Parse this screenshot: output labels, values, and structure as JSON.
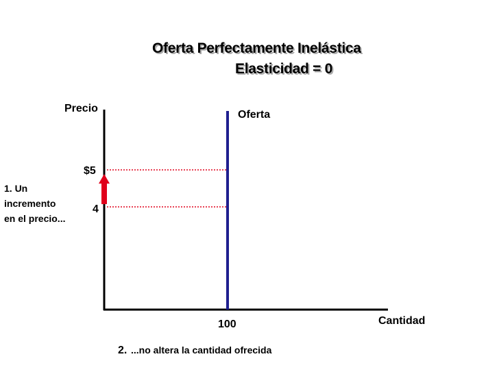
{
  "title": {
    "line1": "Oferta Perfectamente Inelástica",
    "line2": "Elasticidad = 0"
  },
  "axes": {
    "y_label": "Precio",
    "x_label": "Cantidad"
  },
  "curve": {
    "label": "Oferta"
  },
  "price_labels": {
    "high": "$5",
    "low": "4"
  },
  "quantity_label": "100",
  "note1": {
    "lines": [
      "1. Un",
      "incremento",
      "en el precio..."
    ]
  },
  "note2": {
    "number": "2.",
    "text": "...no altera la cantidad ofrecida"
  }
}
